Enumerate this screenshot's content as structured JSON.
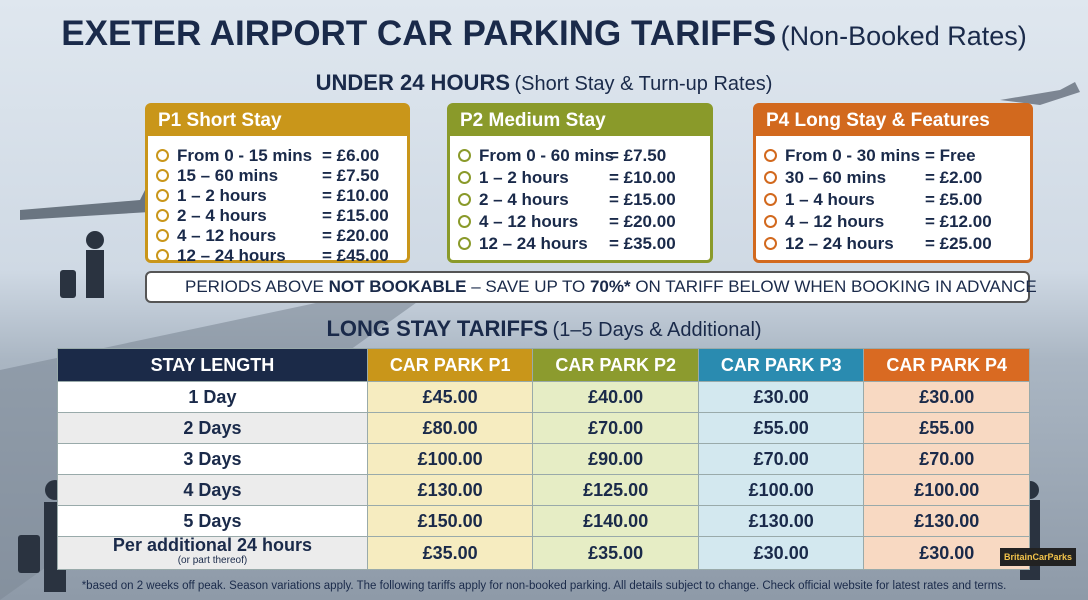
{
  "header": {
    "title": "EXETER AIRPORT CAR PARKING TARIFFS",
    "subtitle": "(Non-Booked Rates)"
  },
  "short_stay": {
    "heading": "UNDER 24 HOURS",
    "subheading": "(Short Stay & Turn-up Rates)",
    "cards": [
      {
        "title": "P1 Short Stay",
        "rows": [
          {
            "period": "From 0 - 15 mins",
            "price": "= £6.00"
          },
          {
            "period": "15 – 60 mins",
            "price": "= £7.50"
          },
          {
            "period": "1 – 2 hours",
            "price": "= £10.00"
          },
          {
            "period": "2 – 4 hours",
            "price": "= £15.00"
          },
          {
            "period": "4 – 12 hours",
            "price": "= £20.00"
          },
          {
            "period": "12 – 24 hours",
            "price": "= £45.00"
          }
        ]
      },
      {
        "title": "P2 Medium Stay",
        "rows": [
          {
            "period": "From 0 - 60 mins",
            "price": "= £7.50"
          },
          {
            "period": "1 – 2 hours",
            "price": "= £10.00"
          },
          {
            "period": "2 – 4 hours",
            "price": "= £15.00"
          },
          {
            "period": "4 – 12 hours",
            "price": "= £20.00"
          },
          {
            "period": "12 – 24 hours",
            "price": "= £35.00"
          }
        ]
      },
      {
        "title": "P4 Long Stay & Features",
        "rows": [
          {
            "period": "From 0 - 30 mins",
            "price": "= Free"
          },
          {
            "period": "30 – 60 mins",
            "price": "= £2.00"
          },
          {
            "period": "1 – 4 hours",
            "price": "= £5.00"
          },
          {
            "period": "4 – 12 hours",
            "price": "= £12.00"
          },
          {
            "period": "12 – 24 hours",
            "price": "= £25.00"
          }
        ]
      }
    ]
  },
  "banner": {
    "parts": [
      "PERIODS ABOVE ",
      "NOT BOOKABLE",
      " – SAVE UP TO ",
      "70%*",
      " ON TARIFF BELOW WHEN BOOKING IN ADVANCE"
    ]
  },
  "long_stay": {
    "heading": "LONG STAY TARIFFS",
    "subheading": "(1–5 Days & Additional)",
    "table": {
      "columns": [
        "STAY LENGTH",
        "CAR PARK P1",
        "CAR PARK P2",
        "CAR PARK P3",
        "CAR PARK P4"
      ],
      "rows": [
        [
          "1 Day",
          "£45.00",
          "£40.00",
          "£30.00",
          "£30.00"
        ],
        [
          "2 Days",
          "£80.00",
          "£70.00",
          "£55.00",
          "£55.00"
        ],
        [
          "3 Days",
          "£100.00",
          "£90.00",
          "£70.00",
          "£70.00"
        ],
        [
          "4 Days",
          "£130.00",
          "£125.00",
          "£100.00",
          "£100.00"
        ],
        [
          "5 Days",
          "£150.00",
          "£140.00",
          "£130.00",
          "£130.00"
        ],
        [
          "Per additional 24 hours",
          "£35.00",
          "£35.00",
          "£30.00",
          "£30.00"
        ]
      ],
      "row_note": "(or part thereof)"
    }
  },
  "footnote": "*based on 2 weeks off peak. Season variations apply. The following tariffs apply for non-booked parking. All details subject to change. Check official website for latest rates and terms.",
  "logo": "BritainCarParks"
}
